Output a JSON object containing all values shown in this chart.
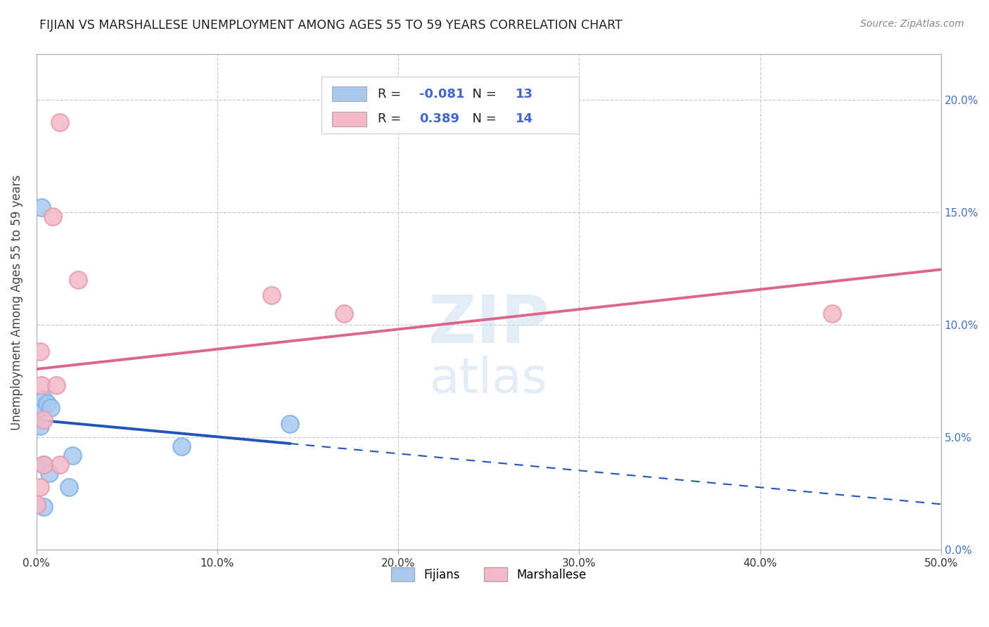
{
  "title": "FIJIAN VS MARSHALLESE UNEMPLOYMENT AMONG AGES 55 TO 59 YEARS CORRELATION CHART",
  "source": "Source: ZipAtlas.com",
  "ylabel": "Unemployment Among Ages 55 to 59 years",
  "fijian_color": "#A8C8EE",
  "fijian_edge_color": "#7EB3E8",
  "marshallese_color": "#F4B8C8",
  "marshallese_edge_color": "#E89AAE",
  "fijian_R": -0.081,
  "fijian_N": 13,
  "marshallese_R": 0.389,
  "marshallese_N": 14,
  "fijian_x": [
    0.002,
    0.004,
    0.006,
    0.008,
    0.004,
    0.007,
    0.003,
    0.002,
    0.02,
    0.08,
    0.14,
    0.018,
    0.004
  ],
  "fijian_y": [
    0.063,
    0.067,
    0.065,
    0.063,
    0.038,
    0.034,
    0.152,
    0.055,
    0.042,
    0.046,
    0.056,
    0.028,
    0.019
  ],
  "marshallese_x": [
    0.003,
    0.004,
    0.002,
    0.009,
    0.013,
    0.011,
    0.13,
    0.023,
    0.17,
    0.013,
    0.44,
    0.004,
    0.002,
    0.0
  ],
  "marshallese_y": [
    0.073,
    0.058,
    0.088,
    0.148,
    0.19,
    0.073,
    0.113,
    0.12,
    0.105,
    0.038,
    0.105,
    0.038,
    0.028,
    0.02
  ],
  "xlim": [
    0.0,
    0.5
  ],
  "ylim": [
    0.0,
    0.22
  ],
  "xticks": [
    0.0,
    0.1,
    0.2,
    0.3,
    0.4,
    0.5
  ],
  "yticks": [
    0.0,
    0.05,
    0.1,
    0.15,
    0.2
  ],
  "ytick_right_labels": [
    "0.0%",
    "5.0%",
    "10.0%",
    "15.0%",
    "20.0%"
  ],
  "xtick_labels": [
    "0.0%",
    "10.0%",
    "20.0%",
    "30.0%",
    "40.0%",
    "50.0%"
  ],
  "trend_blue_color": "#2255BB",
  "trend_pink_color": "#DD6688",
  "background_color": "#FFFFFF",
  "grid_color": "#CCCCCC",
  "title_color": "#222222",
  "source_color": "#888888",
  "r_value_color": "#4466CC",
  "legend_box_edge": "#CCCCCC"
}
